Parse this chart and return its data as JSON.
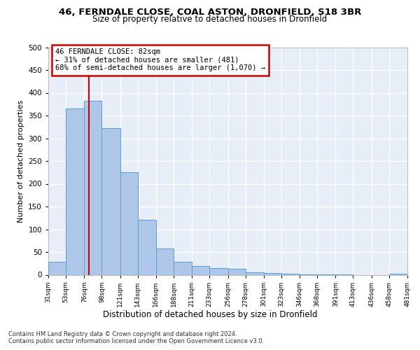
{
  "title1": "46, FERNDALE CLOSE, COAL ASTON, DRONFIELD, S18 3BR",
  "title2": "Size of property relative to detached houses in Dronfield",
  "xlabel": "Distribution of detached houses by size in Dronfield",
  "ylabel": "Number of detached properties",
  "annotation_line1": "46 FERNDALE CLOSE: 82sqm",
  "annotation_line2": "← 31% of detached houses are smaller (481)",
  "annotation_line3": "68% of semi-detached houses are larger (1,070) →",
  "footer1": "Contains HM Land Registry data © Crown copyright and database right 2024.",
  "footer2": "Contains public sector information licensed under the Open Government Licence v3.0.",
  "property_size": 82,
  "bar_edges": [
    31,
    53,
    76,
    98,
    121,
    143,
    166,
    188,
    211,
    233,
    256,
    278,
    301,
    323,
    346,
    368,
    391,
    413,
    436,
    458,
    481
  ],
  "bar_heights": [
    28,
    365,
    383,
    323,
    226,
    121,
    58,
    29,
    20,
    15,
    13,
    6,
    4,
    2,
    1,
    1,
    1,
    0,
    0,
    3
  ],
  "bar_color": "#aec6e8",
  "bar_edge_color": "#5a9fd4",
  "vline_color": "#cc0000",
  "annotation_box_color": "#cc0000",
  "background_color": "#e8eef8",
  "grid_color": "#ffffff",
  "ylim": [
    0,
    500
  ],
  "yticks": [
    0,
    50,
    100,
    150,
    200,
    250,
    300,
    350,
    400,
    450,
    500
  ]
}
